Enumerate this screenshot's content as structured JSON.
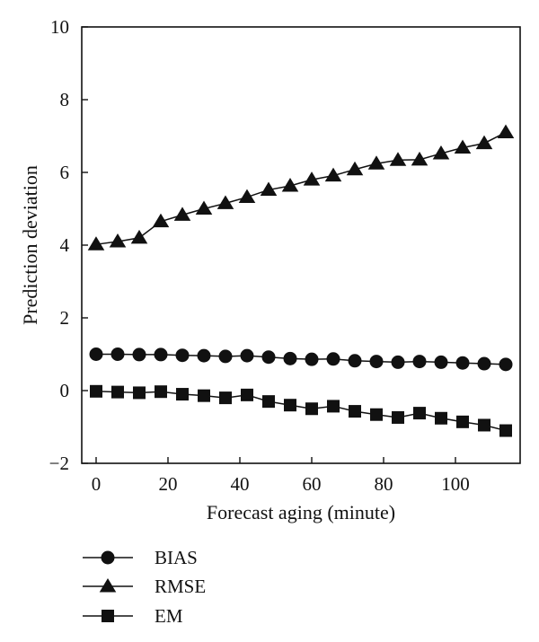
{
  "chart_data": {
    "type": "line",
    "title": "",
    "xlabel": "Forecast aging (minute)",
    "ylabel": "Prediction deviation",
    "xlim": [
      -4,
      118
    ],
    "ylim": [
      -2,
      10
    ],
    "xticks": [
      0,
      20,
      40,
      60,
      80,
      100
    ],
    "yticks": [
      -2,
      0,
      2,
      4,
      6,
      8,
      10
    ],
    "grid": false,
    "legend_position": "below",
    "x": [
      0,
      6,
      12,
      18,
      24,
      30,
      36,
      42,
      48,
      54,
      60,
      66,
      72,
      78,
      84,
      90,
      96,
      102,
      108,
      114
    ],
    "series": [
      {
        "name": "BIAS",
        "marker": "circle",
        "values": [
          1.0,
          1.0,
          0.99,
          0.99,
          0.97,
          0.96,
          0.94,
          0.96,
          0.92,
          0.88,
          0.86,
          0.87,
          0.82,
          0.8,
          0.78,
          0.8,
          0.78,
          0.76,
          0.74,
          0.72
        ]
      },
      {
        "name": "RMSE",
        "marker": "triangle",
        "values": [
          4.02,
          4.1,
          4.2,
          4.65,
          4.83,
          5.0,
          5.15,
          5.32,
          5.52,
          5.63,
          5.8,
          5.91,
          6.08,
          6.24,
          6.34,
          6.35,
          6.52,
          6.68,
          6.8,
          7.1
        ]
      },
      {
        "name": "EM",
        "marker": "square",
        "values": [
          -0.02,
          -0.04,
          -0.06,
          -0.03,
          -0.1,
          -0.14,
          -0.2,
          -0.12,
          -0.3,
          -0.4,
          -0.5,
          -0.43,
          -0.57,
          -0.66,
          -0.74,
          -0.62,
          -0.76,
          -0.86,
          -0.95,
          -1.1
        ]
      }
    ],
    "colors": {
      "line": "#111111",
      "marker": "#111111"
    }
  }
}
